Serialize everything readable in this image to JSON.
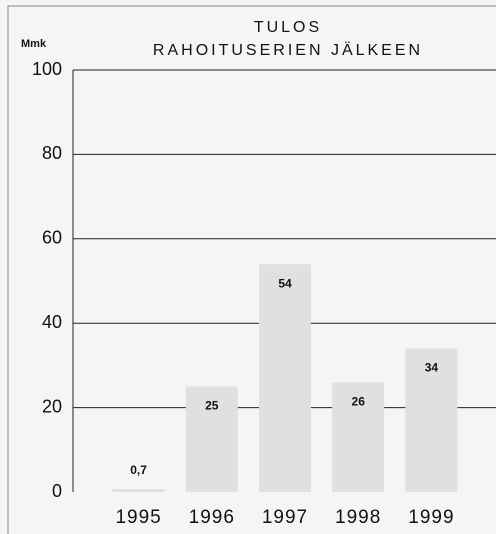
{
  "chart_data": {
    "type": "bar",
    "title": "TULOS",
    "subtitle": "RAHOITUSERIEN JÄLKEEN",
    "y_label": "Mmk",
    "categories": [
      "1995",
      "1996",
      "1997",
      "1998",
      "1999"
    ],
    "values": [
      0.7,
      25,
      54,
      26,
      34
    ],
    "value_labels": [
      "0,7",
      "25",
      "54",
      "26",
      "34"
    ],
    "color": "#e0e0e0",
    "ylim": [
      0,
      100
    ],
    "yticks": [
      0,
      20,
      40,
      60,
      80,
      100
    ],
    "grid": true
  }
}
